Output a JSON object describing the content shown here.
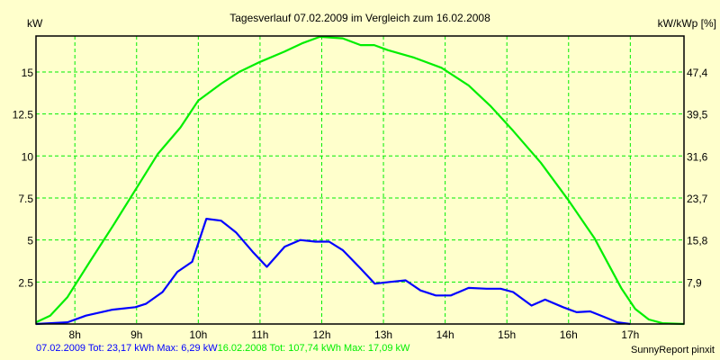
{
  "chart_data": {
    "type": "line",
    "title": "Tagesverlauf 07.02.2009 im Vergleich zum 16.02.2008",
    "ylabel": "kW",
    "ylabel_right": "kW/kWp [%]",
    "xlim": [
      7.37,
      17.87
    ],
    "ylim": [
      0,
      17.14
    ],
    "grid": true,
    "x_ticks": [
      8,
      9,
      10,
      11,
      12,
      13,
      14,
      15,
      16,
      17
    ],
    "x_tick_labels": [
      "8h",
      "9h",
      "10h",
      "11h",
      "12h",
      "13h",
      "14h",
      "15h",
      "16h",
      "17h"
    ],
    "y_ticks": [
      2.5,
      5,
      7.5,
      10,
      12.5,
      15
    ],
    "y_tick_labels": [
      "2.5",
      "5",
      "7.5",
      "10",
      "12.5",
      "15"
    ],
    "y_right_tick_labels": [
      "7,9",
      "15,8",
      "23,7",
      "31,6",
      "39,5",
      "47,4"
    ],
    "series": [
      {
        "name": "07.02.2009",
        "color": "#0000ff",
        "legend": "07.02.2009 Tot: 23,17 kWh Max: 6,29 kW",
        "x": [
          7.37,
          7.88,
          8.18,
          8.61,
          8.98,
          9.15,
          9.42,
          9.66,
          9.9,
          10.13,
          10.37,
          10.61,
          10.88,
          11.11,
          11.4,
          11.65,
          11.9,
          12.12,
          12.34,
          12.63,
          12.86,
          13.1,
          13.36,
          13.6,
          13.85,
          14.09,
          14.38,
          14.67,
          14.9,
          15.1,
          15.4,
          15.62,
          15.91,
          16.13,
          16.35,
          16.57,
          16.79,
          17.0
        ],
        "y": [
          0,
          0.1,
          0.5,
          0.85,
          1.0,
          1.2,
          1.9,
          3.1,
          3.7,
          6.26,
          6.15,
          5.45,
          4.3,
          3.4,
          4.6,
          5.0,
          4.9,
          4.9,
          4.4,
          3.3,
          2.4,
          2.5,
          2.6,
          2.0,
          1.7,
          1.7,
          2.15,
          2.1,
          2.1,
          1.9,
          1.1,
          1.45,
          1.0,
          0.7,
          0.75,
          0.43,
          0.1,
          0
        ]
      },
      {
        "name": "16.02.2008",
        "color": "#00ee00",
        "legend": "16.02.2008 Tot: 107,74 kWh Max: 17,09 kW",
        "x": [
          7.37,
          7.6,
          7.88,
          8.25,
          8.61,
          9.0,
          9.34,
          9.71,
          10.0,
          10.37,
          10.66,
          11.0,
          11.39,
          11.68,
          11.97,
          12.34,
          12.63,
          12.85,
          13.07,
          13.5,
          13.94,
          14.38,
          14.74,
          15.1,
          15.55,
          15.99,
          16.42,
          16.86,
          17.08,
          17.3,
          17.52,
          17.87
        ],
        "y": [
          0.1,
          0.5,
          1.6,
          3.75,
          5.8,
          8.1,
          10.1,
          11.7,
          13.3,
          14.3,
          15.0,
          15.6,
          16.2,
          16.7,
          17.09,
          17.0,
          16.6,
          16.6,
          16.3,
          15.85,
          15.25,
          14.2,
          12.95,
          11.5,
          9.6,
          7.4,
          5.1,
          2.1,
          0.9,
          0.27,
          0.05,
          0
        ]
      }
    ]
  },
  "credit": "SunnyReport pinxit"
}
